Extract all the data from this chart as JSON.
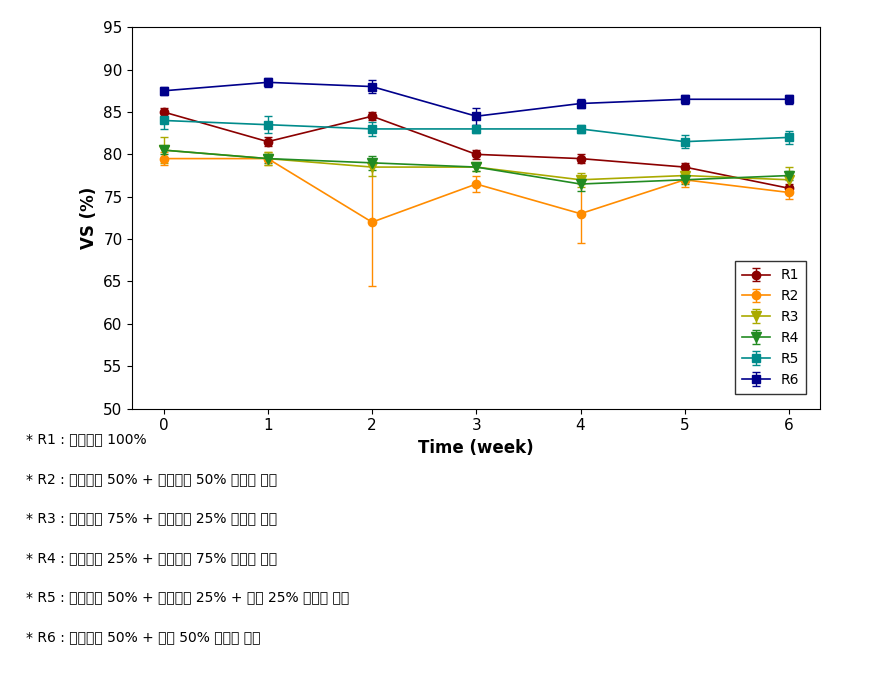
{
  "x": [
    0,
    1,
    2,
    3,
    4,
    5,
    6
  ],
  "series": {
    "R1": {
      "y": [
        85.0,
        81.5,
        84.5,
        80.0,
        79.5,
        78.5,
        76.0
      ],
      "yerr": [
        0.5,
        0.5,
        0.5,
        0.5,
        0.5,
        0.5,
        0.5
      ],
      "color": "#8B0000",
      "marker": "o",
      "markersize": 6
    },
    "R2": {
      "y": [
        79.5,
        79.5,
        72.0,
        76.5,
        73.0,
        77.0,
        75.5
      ],
      "yerr": [
        0.8,
        0.8,
        7.5,
        1.0,
        3.5,
        0.8,
        0.8
      ],
      "color": "#FF8C00",
      "marker": "o",
      "markersize": 6
    },
    "R3": {
      "y": [
        80.5,
        79.5,
        78.5,
        78.5,
        77.0,
        77.5,
        77.0
      ],
      "yerr": [
        1.5,
        0.8,
        1.0,
        0.5,
        0.8,
        0.8,
        1.5
      ],
      "color": "#AAAA00",
      "marker": "v",
      "markersize": 7
    },
    "R4": {
      "y": [
        80.5,
        79.5,
        79.0,
        78.5,
        76.5,
        77.0,
        77.5
      ],
      "yerr": [
        0.5,
        0.5,
        0.8,
        0.5,
        0.8,
        0.5,
        0.5
      ],
      "color": "#228B22",
      "marker": "v",
      "markersize": 7
    },
    "R5": {
      "y": [
        84.0,
        83.5,
        83.0,
        83.0,
        83.0,
        81.5,
        82.0
      ],
      "yerr": [
        1.0,
        1.0,
        0.8,
        0.5,
        0.5,
        0.8,
        0.8
      ],
      "color": "#008B8B",
      "marker": "s",
      "markersize": 6
    },
    "R6": {
      "y": [
        87.5,
        88.5,
        88.0,
        84.5,
        86.0,
        86.5,
        86.5
      ],
      "yerr": [
        0.5,
        0.5,
        0.8,
        1.0,
        0.5,
        0.5,
        0.5
      ],
      "color": "#00008B",
      "marker": "s",
      "markersize": 6
    }
  },
  "ylabel": "VS (%)",
  "xlabel": "Time (week)",
  "ylim": [
    50,
    95
  ],
  "yticks": [
    50,
    55,
    60,
    65,
    70,
    75,
    80,
    85,
    90,
    95
  ],
  "xticks": [
    0,
    1,
    2,
    3,
    4,
    5,
    6
  ],
  "annotations": [
    "* R1 : 가축분놨 100%",
    "* R2 : 가축분놨 50% + 부숙퇴비 50% 부피비 혼합",
    "* R3 : 가축분놨 75% + 부숙퇴비 25% 부피비 혼합",
    "* R4 : 가축분놨 25% + 부숙퇴비 75% 부피비 혼합",
    "* R5 : 가축분놨 50% + 부숙퇴비 25% + 퇱밥 25% 부피비 혼합",
    "* R6 : 가축분놨 50% + 퇱밥 50% 부피비 혼합"
  ],
  "background_color": "#ffffff",
  "capsize": 3
}
